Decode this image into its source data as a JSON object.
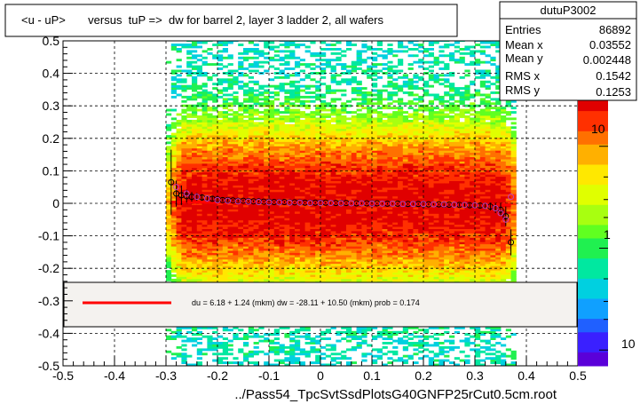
{
  "chart_data": {
    "type": "heatmap",
    "title": "<u - uP>       versus  tuP =>  dw for barrel 2, layer 3 ladder 2, all wafers",
    "xlabel": "../Pass54_TpcSvtSsdPlotsG40GNFP25rCut0.5cm.root",
    "ylabel": "",
    "xlim": [
      -0.5,
      0.5
    ],
    "ylim": [
      -0.5,
      0.5
    ],
    "x_ticks": [
      "-0.5",
      "-0.4",
      "-0.3",
      "-0.2",
      "-0.1",
      "0",
      "0.1",
      "0.2",
      "0.3",
      "0.4",
      "0.5"
    ],
    "y_ticks": [
      "-0.5",
      "-0.4",
      "-0.3",
      "-0.2",
      "-0.1",
      "0",
      "0.1",
      "0.2",
      "0.3",
      "0.4",
      "0.5"
    ],
    "grid": true,
    "stats": {
      "name": "dutuP3002",
      "rows": [
        {
          "label": "Entries",
          "value": "86892"
        },
        {
          "label": "Mean x",
          "value": "0.03552"
        },
        {
          "label": "Mean y",
          "value": "0.002448"
        },
        {
          "label": "RMS x",
          "value": "0.1542"
        },
        {
          "label": "RMS y",
          "value": "0.1253"
        }
      ]
    },
    "colorbar": {
      "scale": "log",
      "labels": [
        "10",
        "1",
        "10"
      ],
      "label_values": [
        10,
        1,
        0.1
      ]
    },
    "fit_text": "du =    6.18 +   1.24 (mkm) dw =  -28.11 +  10.50 (mkm) prob = 0.174",
    "fit_line": {
      "x": [
        -0.29,
        0.37
      ],
      "y": [
        0.0037,
        -0.0045
      ],
      "color": "#ff0000"
    },
    "band": {
      "x_min": -0.3,
      "x_max": 0.38,
      "y_center": 0.0,
      "y_sigma": 0.125
    },
    "profile_points": {
      "x": [
        -0.29,
        -0.28,
        -0.27,
        -0.26,
        -0.25,
        -0.24,
        -0.23,
        -0.22,
        -0.21,
        -0.2,
        -0.19,
        -0.18,
        -0.17,
        -0.16,
        -0.15,
        -0.14,
        -0.13,
        -0.12,
        -0.11,
        -0.1,
        -0.09,
        -0.08,
        -0.07,
        -0.06,
        -0.05,
        -0.04,
        -0.03,
        -0.02,
        -0.01,
        0.0,
        0.01,
        0.02,
        0.03,
        0.04,
        0.05,
        0.06,
        0.07,
        0.08,
        0.09,
        0.1,
        0.11,
        0.12,
        0.13,
        0.14,
        0.15,
        0.16,
        0.17,
        0.18,
        0.19,
        0.2,
        0.21,
        0.22,
        0.23,
        0.24,
        0.25,
        0.26,
        0.27,
        0.28,
        0.29,
        0.3,
        0.31,
        0.32,
        0.33,
        0.34,
        0.35,
        0.36,
        0.37
      ],
      "y": [
        0.065,
        0.03,
        0.025,
        0.022,
        0.02,
        0.02,
        0.018,
        0.015,
        0.014,
        0.012,
        0.01,
        0.01,
        0.009,
        0.008,
        0.008,
        0.007,
        0.006,
        0.006,
        0.005,
        0.005,
        0.004,
        0.004,
        0.004,
        0.003,
        0.003,
        0.003,
        0.002,
        0.002,
        0.002,
        0.002,
        0.002,
        0.001,
        0.001,
        0.001,
        0.001,
        0.0,
        0.0,
        0.0,
        0.0,
        0.0,
        0.0,
        -0.001,
        -0.001,
        -0.001,
        -0.001,
        -0.002,
        -0.002,
        -0.002,
        -0.002,
        -0.003,
        -0.003,
        -0.003,
        -0.003,
        -0.004,
        -0.004,
        -0.004,
        -0.005,
        -0.005,
        -0.006,
        -0.006,
        -0.007,
        -0.008,
        -0.01,
        -0.015,
        -0.02,
        -0.04,
        -0.12
      ],
      "yerr": [
        0.1,
        0.04,
        0.03,
        0.02,
        0.015,
        0.012,
        0.01,
        0.008,
        0.007,
        0.006,
        0.005,
        0.005,
        0.004,
        0.004,
        0.004,
        0.003,
        0.003,
        0.003,
        0.003,
        0.003,
        0.003,
        0.003,
        0.003,
        0.003,
        0.003,
        0.003,
        0.003,
        0.003,
        0.003,
        0.003,
        0.003,
        0.003,
        0.003,
        0.003,
        0.003,
        0.003,
        0.003,
        0.003,
        0.003,
        0.003,
        0.003,
        0.003,
        0.003,
        0.003,
        0.003,
        0.003,
        0.003,
        0.003,
        0.003,
        0.003,
        0.003,
        0.003,
        0.003,
        0.004,
        0.004,
        0.004,
        0.005,
        0.005,
        0.006,
        0.007,
        0.008,
        0.01,
        0.012,
        0.015,
        0.02,
        0.03,
        0.04
      ]
    },
    "profile_points_2": {
      "x": [
        -0.28,
        -0.26,
        -0.24,
        -0.22,
        -0.2,
        -0.18,
        -0.16,
        -0.14,
        -0.12,
        -0.1,
        -0.08,
        -0.06,
        -0.04,
        -0.02,
        0.0,
        0.02,
        0.04,
        0.06,
        0.08,
        0.1,
        0.12,
        0.14,
        0.16,
        0.18,
        0.2,
        0.22,
        0.24,
        0.26,
        0.28,
        0.3,
        0.32,
        0.34,
        0.35,
        0.36,
        0.37
      ],
      "y": [
        0.05,
        0.03,
        0.02,
        0.015,
        0.01,
        0.008,
        0.006,
        0.005,
        0.004,
        0.003,
        0.003,
        0.002,
        0.002,
        0.001,
        0.001,
        0.001,
        0.0,
        0.0,
        0.0,
        -0.001,
        -0.001,
        -0.001,
        -0.002,
        -0.002,
        -0.002,
        -0.003,
        -0.003,
        -0.004,
        -0.005,
        -0.006,
        -0.008,
        -0.015,
        -0.03,
        -0.05,
        0.02
      ]
    }
  }
}
